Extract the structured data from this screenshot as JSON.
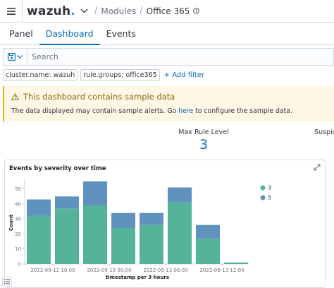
{
  "header": {
    "logo_text": "wazuh",
    "logo_dot": ".",
    "breadcrumbs": [
      "Modules",
      "Office 365"
    ]
  },
  "tabs": [
    {
      "label": "Panel",
      "active": false
    },
    {
      "label": "Dashboard",
      "active": true
    },
    {
      "label": "Events",
      "active": false
    }
  ],
  "search": {
    "placeholder": "Search",
    "value": ""
  },
  "filters": {
    "pills": [
      "cluster.name: wazuh",
      "rule.groups: office365"
    ],
    "add_label": "+ Add filter"
  },
  "callout": {
    "title": "This dashboard contains sample data",
    "body_before": "The data displayed may contain sample alerts. Go ",
    "link": "here",
    "body_after": " to configure the sample data."
  },
  "metrics": [
    {
      "label": "Max Rule Level",
      "value": "3"
    },
    {
      "label": "Suspicious",
      "value": ""
    }
  ],
  "colors": {
    "accent": "#006bb8",
    "metric_value": "#0b74c0",
    "warning": "#f5a700",
    "series_3": "#54b399",
    "series_5": "#6092c0"
  },
  "chart_data": {
    "type": "bar",
    "title": "Events by severity over time",
    "xlabel": "timestamp per 3 hours",
    "ylabel": "Count",
    "ylim": [
      0,
      55
    ],
    "yticks": [
      0,
      10,
      20,
      30,
      40,
      50
    ],
    "xtick_labels": [
      "2022-09-12 18:00",
      "2022-09-13 00:00",
      "2022-09-13 06:00",
      "2022-09-13 12:00"
    ],
    "stacked": true,
    "legend_position": "top-right",
    "series": [
      {
        "name": "3",
        "values": [
          32,
          37,
          39,
          24,
          26,
          41,
          17,
          1
        ]
      },
      {
        "name": "5",
        "values": [
          11,
          8,
          16,
          10,
          8,
          10,
          9,
          0
        ]
      }
    ]
  }
}
